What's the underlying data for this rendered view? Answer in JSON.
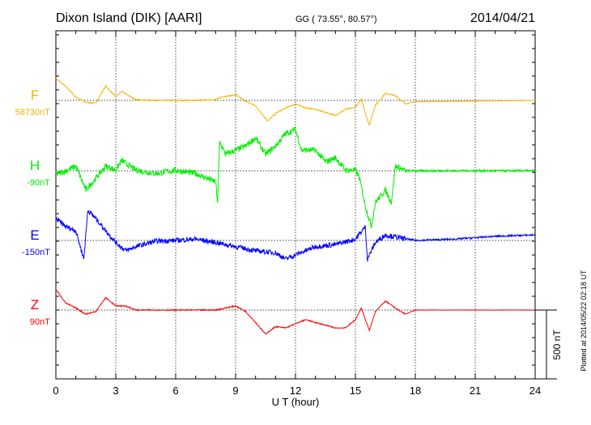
{
  "chart_data": {
    "type": "line",
    "title": "Dixon Island (DIK)  [AARI]",
    "coords": "GG ( 73.55°,  80.57°)",
    "date": "2014/04/21",
    "xlabel": "U T (hour)",
    "xlim": [
      0,
      24
    ],
    "xticks": [
      "0",
      "3",
      "6",
      "9",
      "12",
      "15",
      "18",
      "21",
      "24"
    ],
    "scale_label": "500 nT",
    "scale_nT": 500,
    "plotted_at": "Plotted at 2014/05/22 02:18 UT",
    "series": [
      {
        "name": "F",
        "baseline": "58730nT",
        "color": "#f5b400",
        "points": [
          [
            0,
            160
          ],
          [
            0.5,
            100
          ],
          [
            1,
            25
          ],
          [
            1.5,
            -15
          ],
          [
            2,
            -20
          ],
          [
            2.5,
            105
          ],
          [
            3,
            25
          ],
          [
            3.3,
            65
          ],
          [
            4,
            5
          ],
          [
            5,
            0
          ],
          [
            6,
            0
          ],
          [
            7,
            0
          ],
          [
            8,
            5
          ],
          [
            8.3,
            25
          ],
          [
            9,
            40
          ],
          [
            9.5,
            -5
          ],
          [
            10,
            -40
          ],
          [
            10.6,
            -150
          ],
          [
            11,
            -95
          ],
          [
            11.5,
            -55
          ],
          [
            12,
            -25
          ],
          [
            12.5,
            -55
          ],
          [
            13,
            -65
          ],
          [
            14,
            -110
          ],
          [
            14.5,
            -65
          ],
          [
            15,
            -50
          ],
          [
            15.3,
            10
          ],
          [
            15.5,
            -95
          ],
          [
            15.7,
            -180
          ],
          [
            16,
            -35
          ],
          [
            16.5,
            50
          ],
          [
            17,
            35
          ],
          [
            17.5,
            -25
          ],
          [
            18,
            -10
          ],
          [
            24,
            0
          ]
        ]
      },
      {
        "name": "H",
        "baseline": "-90nT",
        "color": "#00ee00",
        "points": [
          [
            0,
            -25
          ],
          [
            0.5,
            0
          ],
          [
            1,
            35
          ],
          [
            1.5,
            -140
          ],
          [
            2,
            -55
          ],
          [
            2.5,
            35
          ],
          [
            3,
            5
          ],
          [
            3.3,
            75
          ],
          [
            4,
            5
          ],
          [
            5,
            -20
          ],
          [
            6,
            5
          ],
          [
            7,
            -20
          ],
          [
            8,
            -80
          ],
          [
            8.1,
            -230
          ],
          [
            8.2,
            210
          ],
          [
            8.5,
            120
          ],
          [
            9,
            150
          ],
          [
            9.5,
            180
          ],
          [
            10,
            240
          ],
          [
            10.5,
            120
          ],
          [
            11,
            180
          ],
          [
            11.5,
            270
          ],
          [
            12,
            300
          ],
          [
            12.3,
            150
          ],
          [
            13,
            150
          ],
          [
            13.5,
            65
          ],
          [
            14,
            95
          ],
          [
            14.5,
            5
          ],
          [
            15,
            5
          ],
          [
            15.2,
            -50
          ],
          [
            15.5,
            -260
          ],
          [
            15.8,
            -400
          ],
          [
            16,
            -230
          ],
          [
            16.5,
            -140
          ],
          [
            16.8,
            -230
          ],
          [
            17,
            35
          ],
          [
            17.5,
            0
          ],
          [
            18,
            0
          ],
          [
            24,
            0
          ]
        ]
      },
      {
        "name": "E",
        "baseline": "-150nT",
        "color": "#0000ff",
        "points": [
          [
            0,
            160
          ],
          [
            0.5,
            100
          ],
          [
            1,
            70
          ],
          [
            1.4,
            -135
          ],
          [
            1.6,
            220
          ],
          [
            2,
            160
          ],
          [
            2.5,
            70
          ],
          [
            3,
            -15
          ],
          [
            3.5,
            -75
          ],
          [
            4,
            -45
          ],
          [
            5,
            -5
          ],
          [
            6,
            0
          ],
          [
            7,
            10
          ],
          [
            8,
            -15
          ],
          [
            9,
            -45
          ],
          [
            10,
            -75
          ],
          [
            11,
            -90
          ],
          [
            11.5,
            -135
          ],
          [
            12,
            -105
          ],
          [
            13,
            -45
          ],
          [
            14,
            -30
          ],
          [
            15,
            10
          ],
          [
            15.5,
            100
          ],
          [
            15.6,
            -135
          ],
          [
            16,
            -15
          ],
          [
            16.5,
            40
          ],
          [
            17,
            25
          ],
          [
            18,
            0
          ],
          [
            20,
            10
          ],
          [
            22,
            30
          ],
          [
            24,
            40
          ]
        ]
      },
      {
        "name": "Z",
        "baseline": "90nT",
        "color": "#ff0000",
        "points": [
          [
            0,
            150
          ],
          [
            0.5,
            50
          ],
          [
            1,
            15
          ],
          [
            1.5,
            -30
          ],
          [
            2,
            -10
          ],
          [
            2.5,
            90
          ],
          [
            3,
            30
          ],
          [
            3.5,
            30
          ],
          [
            4,
            0
          ],
          [
            8,
            0
          ],
          [
            9,
            30
          ],
          [
            9.5,
            -10
          ],
          [
            10,
            -90
          ],
          [
            10.5,
            -175
          ],
          [
            11,
            -120
          ],
          [
            11.5,
            -130
          ],
          [
            12,
            -100
          ],
          [
            12.5,
            -70
          ],
          [
            13,
            -90
          ],
          [
            14,
            -130
          ],
          [
            14.5,
            -130
          ],
          [
            15,
            -70
          ],
          [
            15.3,
            15
          ],
          [
            15.5,
            -70
          ],
          [
            15.7,
            -150
          ],
          [
            16,
            -10
          ],
          [
            16.5,
            65
          ],
          [
            17,
            15
          ],
          [
            17.5,
            -30
          ],
          [
            18,
            0
          ],
          [
            24,
            0
          ]
        ]
      }
    ]
  }
}
